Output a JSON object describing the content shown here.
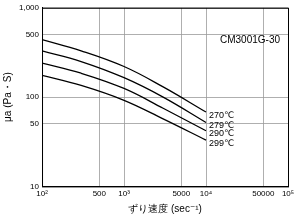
{
  "chart_data": {
    "type": "line",
    "annotation": "CM3001G-30",
    "xlabel": "ずり速度 (sec⁻¹)",
    "ylabel": "μa (Pa・S)",
    "x": [
      100,
      300,
      1000,
      3000,
      10000
    ],
    "series": [
      {
        "name": "270℃",
        "color": "#000000",
        "values": [
          440,
          330,
          220,
          130,
          68
        ]
      },
      {
        "name": "279℃",
        "color": "#000000",
        "values": [
          330,
          250,
          165,
          100,
          52
        ]
      },
      {
        "name": "290℃",
        "color": "#000000",
        "values": [
          240,
          185,
          125,
          75,
          42
        ]
      },
      {
        "name": "299℃",
        "color": "#000000",
        "values": [
          175,
          135,
          92,
          57,
          33
        ]
      }
    ],
    "xlim": [
      100,
      100000
    ],
    "ylim": [
      10,
      1000
    ],
    "xticks": [
      {
        "value": 100,
        "label": "10²"
      },
      500,
      {
        "value": 1000,
        "label": "10³"
      },
      5000,
      {
        "value": 10000,
        "label": "10⁴"
      },
      50000,
      {
        "value": 100000,
        "label": "10⁵"
      }
    ],
    "yticks": [
      10,
      50,
      100,
      500,
      {
        "value": 1000,
        "label": "1,000"
      }
    ],
    "log": true,
    "grid": true
  }
}
